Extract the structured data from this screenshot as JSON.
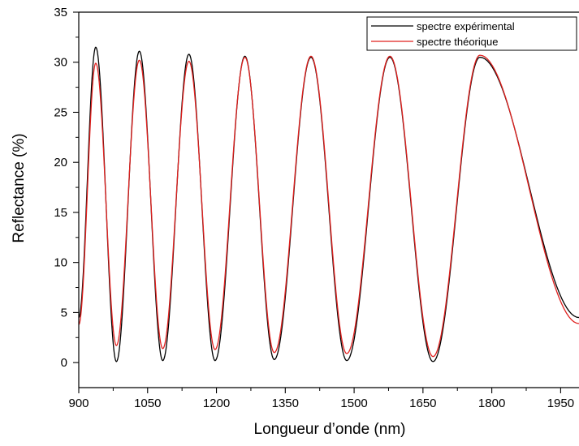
{
  "chart_data": {
    "type": "line",
    "title": "",
    "xlabel": "Longueur d’onde (nm)",
    "ylabel": "Reflectance (%)",
    "xlim": [
      900,
      1990
    ],
    "ylim": [
      -2.5,
      35
    ],
    "x_ticks": [
      900,
      1050,
      1200,
      1350,
      1500,
      1650,
      1800,
      1950
    ],
    "x_tick_labels": [
      "900",
      "1050",
      "1200",
      "1350",
      "1500",
      "1650",
      "1800",
      "1950"
    ],
    "y_ticks": [
      0,
      5,
      10,
      15,
      20,
      25,
      30,
      35
    ],
    "y_tick_labels": [
      "0",
      "5",
      "10",
      "15",
      "20",
      "25",
      "30",
      "35"
    ],
    "grid": false,
    "legend_position": "top-right",
    "series": [
      {
        "name": "spectre expérimental",
        "color": "#000000",
        "extrema": [
          [
            900,
            4.5
          ],
          [
            937,
            31.5
          ],
          [
            982,
            0.1
          ],
          [
            1032,
            31.1
          ],
          [
            1083,
            0.2
          ],
          [
            1140,
            30.8
          ],
          [
            1197,
            0.2
          ],
          [
            1262,
            30.6
          ],
          [
            1326,
            0.3
          ],
          [
            1406,
            30.5
          ],
          [
            1484,
            0.2
          ],
          [
            1578,
            30.5
          ],
          [
            1672,
            0.1
          ],
          [
            1774,
            30.5
          ],
          [
            1990,
            4.5
          ]
        ]
      },
      {
        "name": "spectre théorique",
        "color": "#e0201e",
        "extrema": [
          [
            900,
            3.8
          ],
          [
            937,
            29.9
          ],
          [
            982,
            1.7
          ],
          [
            1032,
            30.2
          ],
          [
            1083,
            1.4
          ],
          [
            1140,
            30.1
          ],
          [
            1197,
            1.3
          ],
          [
            1262,
            30.5
          ],
          [
            1326,
            1.0
          ],
          [
            1406,
            30.6
          ],
          [
            1484,
            0.9
          ],
          [
            1578,
            30.6
          ],
          [
            1672,
            0.6
          ],
          [
            1774,
            30.7
          ],
          [
            1990,
            3.9
          ]
        ]
      }
    ]
  }
}
